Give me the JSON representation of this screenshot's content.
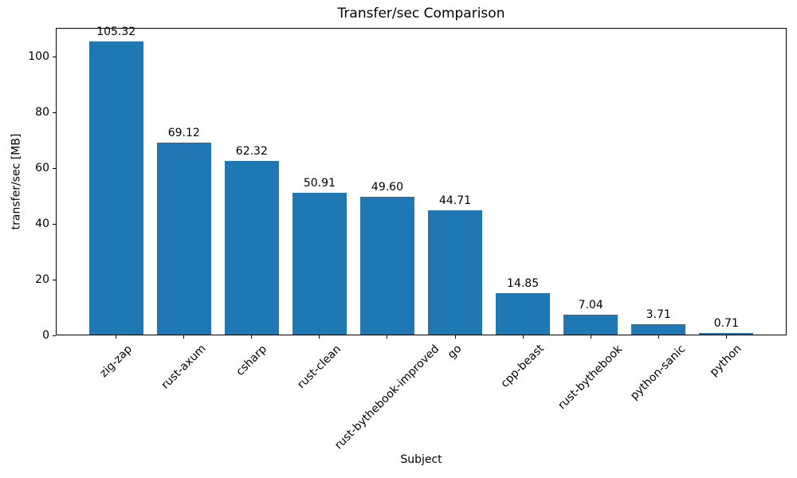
{
  "chart_data": {
    "type": "bar",
    "title": "Transfer/sec Comparison",
    "xlabel": "Subject",
    "ylabel": "transfer/sec [MB]",
    "categories": [
      "zig-zap",
      "rust-axum",
      "csharp",
      "rust-clean",
      "rust-bythebook-improved",
      "go",
      "cpp-beast",
      "rust-bythebook",
      "python-sanic",
      "python"
    ],
    "values": [
      105.32,
      69.12,
      62.32,
      50.91,
      49.6,
      44.71,
      14.85,
      7.04,
      3.71,
      0.71
    ],
    "bar_labels": [
      "105.32",
      "69.12",
      "62.32",
      "50.91",
      "49.60",
      "44.71",
      "14.85",
      "7.04",
      "3.71",
      "0.71"
    ],
    "yticks": [
      0,
      20,
      40,
      60,
      80,
      100
    ],
    "ylim": [
      0,
      110.6
    ],
    "xtick_rotation_deg": 45,
    "bar_color": "#1f77b4",
    "axis_color": "#000000",
    "background_color": "#ffffff",
    "grid": false,
    "legend_position": "none"
  }
}
